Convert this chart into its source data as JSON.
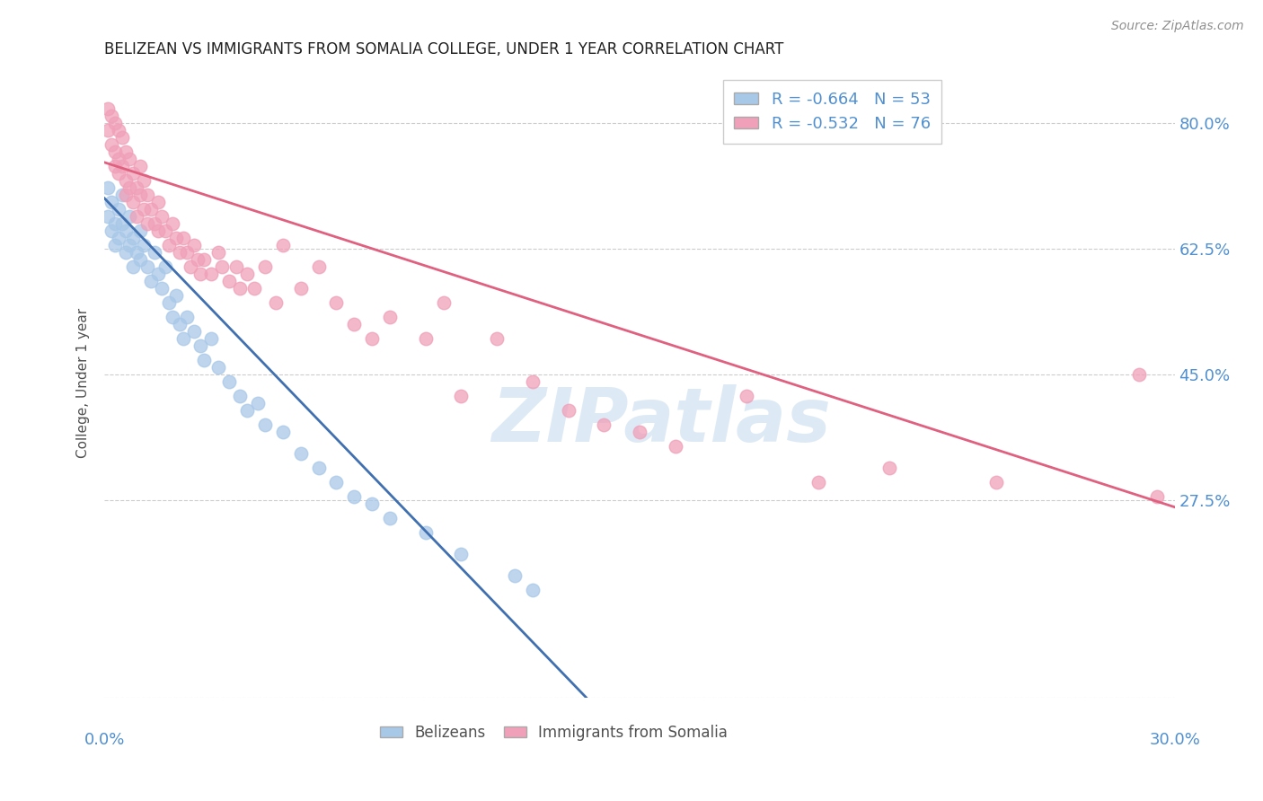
{
  "title": "BELIZEAN VS IMMIGRANTS FROM SOMALIA COLLEGE, UNDER 1 YEAR CORRELATION CHART",
  "source": "Source: ZipAtlas.com",
  "ylabel": "College, Under 1 year",
  "y_ticks": [
    0.0,
    0.275,
    0.45,
    0.625,
    0.8
  ],
  "y_tick_labels": [
    "",
    "27.5%",
    "45.0%",
    "62.5%",
    "80.0%"
  ],
  "x_ticks": [
    0.0,
    0.05,
    0.1,
    0.15,
    0.2,
    0.25,
    0.3
  ],
  "xlim": [
    0.0,
    0.3
  ],
  "ylim": [
    0.0,
    0.875
  ],
  "watermark": "ZIPatlas",
  "belizean_R": "-0.664",
  "belizean_N": "53",
  "somalia_R": "-0.532",
  "somalia_N": "76",
  "belizean_color": "#a8c8e8",
  "somalia_color": "#f0a0b8",
  "belizean_line_color": "#4070b0",
  "somalia_line_color": "#e06080",
  "tick_label_color": "#5090d0",
  "title_color": "#202020",
  "source_color": "#909090",
  "grid_color": "#cccccc",
  "belizean_scatter": [
    [
      0.001,
      0.71
    ],
    [
      0.001,
      0.67
    ],
    [
      0.002,
      0.69
    ],
    [
      0.002,
      0.65
    ],
    [
      0.003,
      0.66
    ],
    [
      0.003,
      0.63
    ],
    [
      0.004,
      0.68
    ],
    [
      0.004,
      0.64
    ],
    [
      0.005,
      0.7
    ],
    [
      0.005,
      0.66
    ],
    [
      0.006,
      0.65
    ],
    [
      0.006,
      0.62
    ],
    [
      0.007,
      0.67
    ],
    [
      0.007,
      0.63
    ],
    [
      0.008,
      0.64
    ],
    [
      0.008,
      0.6
    ],
    [
      0.009,
      0.62
    ],
    [
      0.01,
      0.65
    ],
    [
      0.01,
      0.61
    ],
    [
      0.011,
      0.63
    ],
    [
      0.012,
      0.6
    ],
    [
      0.013,
      0.58
    ],
    [
      0.014,
      0.62
    ],
    [
      0.015,
      0.59
    ],
    [
      0.016,
      0.57
    ],
    [
      0.017,
      0.6
    ],
    [
      0.018,
      0.55
    ],
    [
      0.019,
      0.53
    ],
    [
      0.02,
      0.56
    ],
    [
      0.021,
      0.52
    ],
    [
      0.022,
      0.5
    ],
    [
      0.023,
      0.53
    ],
    [
      0.025,
      0.51
    ],
    [
      0.027,
      0.49
    ],
    [
      0.028,
      0.47
    ],
    [
      0.03,
      0.5
    ],
    [
      0.032,
      0.46
    ],
    [
      0.035,
      0.44
    ],
    [
      0.038,
      0.42
    ],
    [
      0.04,
      0.4
    ],
    [
      0.043,
      0.41
    ],
    [
      0.045,
      0.38
    ],
    [
      0.05,
      0.37
    ],
    [
      0.055,
      0.34
    ],
    [
      0.06,
      0.32
    ],
    [
      0.065,
      0.3
    ],
    [
      0.07,
      0.28
    ],
    [
      0.075,
      0.27
    ],
    [
      0.08,
      0.25
    ],
    [
      0.09,
      0.23
    ],
    [
      0.1,
      0.2
    ],
    [
      0.115,
      0.17
    ],
    [
      0.12,
      0.15
    ]
  ],
  "somalia_scatter": [
    [
      0.001,
      0.82
    ],
    [
      0.001,
      0.79
    ],
    [
      0.002,
      0.81
    ],
    [
      0.002,
      0.77
    ],
    [
      0.003,
      0.8
    ],
    [
      0.003,
      0.76
    ],
    [
      0.003,
      0.74
    ],
    [
      0.004,
      0.79
    ],
    [
      0.004,
      0.75
    ],
    [
      0.004,
      0.73
    ],
    [
      0.005,
      0.78
    ],
    [
      0.005,
      0.74
    ],
    [
      0.006,
      0.76
    ],
    [
      0.006,
      0.72
    ],
    [
      0.006,
      0.7
    ],
    [
      0.007,
      0.75
    ],
    [
      0.007,
      0.71
    ],
    [
      0.008,
      0.73
    ],
    [
      0.008,
      0.69
    ],
    [
      0.009,
      0.71
    ],
    [
      0.009,
      0.67
    ],
    [
      0.01,
      0.74
    ],
    [
      0.01,
      0.7
    ],
    [
      0.011,
      0.72
    ],
    [
      0.011,
      0.68
    ],
    [
      0.012,
      0.7
    ],
    [
      0.012,
      0.66
    ],
    [
      0.013,
      0.68
    ],
    [
      0.014,
      0.66
    ],
    [
      0.015,
      0.69
    ],
    [
      0.015,
      0.65
    ],
    [
      0.016,
      0.67
    ],
    [
      0.017,
      0.65
    ],
    [
      0.018,
      0.63
    ],
    [
      0.019,
      0.66
    ],
    [
      0.02,
      0.64
    ],
    [
      0.021,
      0.62
    ],
    [
      0.022,
      0.64
    ],
    [
      0.023,
      0.62
    ],
    [
      0.024,
      0.6
    ],
    [
      0.025,
      0.63
    ],
    [
      0.026,
      0.61
    ],
    [
      0.027,
      0.59
    ],
    [
      0.028,
      0.61
    ],
    [
      0.03,
      0.59
    ],
    [
      0.032,
      0.62
    ],
    [
      0.033,
      0.6
    ],
    [
      0.035,
      0.58
    ],
    [
      0.037,
      0.6
    ],
    [
      0.038,
      0.57
    ],
    [
      0.04,
      0.59
    ],
    [
      0.042,
      0.57
    ],
    [
      0.045,
      0.6
    ],
    [
      0.048,
      0.55
    ],
    [
      0.05,
      0.63
    ],
    [
      0.055,
      0.57
    ],
    [
      0.06,
      0.6
    ],
    [
      0.065,
      0.55
    ],
    [
      0.07,
      0.52
    ],
    [
      0.075,
      0.5
    ],
    [
      0.08,
      0.53
    ],
    [
      0.09,
      0.5
    ],
    [
      0.095,
      0.55
    ],
    [
      0.1,
      0.42
    ],
    [
      0.11,
      0.5
    ],
    [
      0.12,
      0.44
    ],
    [
      0.13,
      0.4
    ],
    [
      0.14,
      0.38
    ],
    [
      0.15,
      0.37
    ],
    [
      0.16,
      0.35
    ],
    [
      0.18,
      0.42
    ],
    [
      0.2,
      0.3
    ],
    [
      0.22,
      0.32
    ],
    [
      0.25,
      0.3
    ],
    [
      0.29,
      0.45
    ],
    [
      0.295,
      0.28
    ]
  ],
  "belizean_line": {
    "x0": 0.0,
    "y0": 0.695,
    "x1": 0.135,
    "y1": 0.0
  },
  "somalia_line": {
    "x0": 0.0,
    "y0": 0.745,
    "x1": 0.3,
    "y1": 0.265
  }
}
